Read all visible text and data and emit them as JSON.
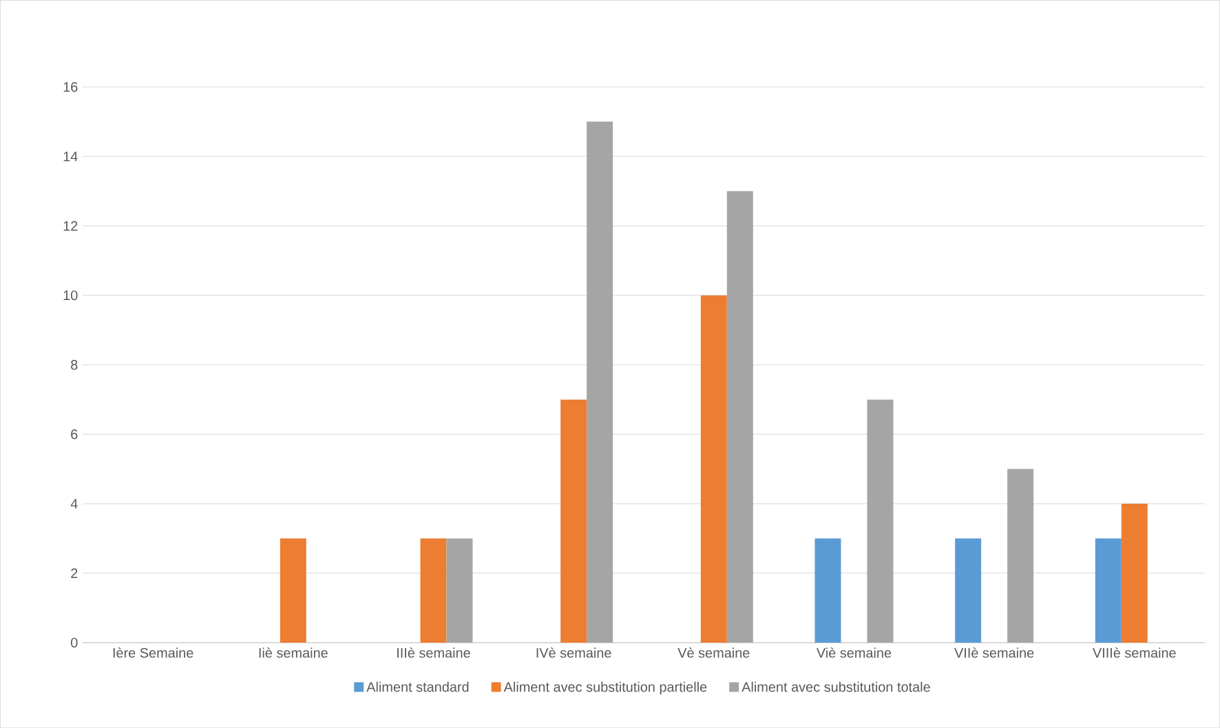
{
  "chart_data": {
    "type": "bar",
    "categories": [
      "Ière Semaine",
      "Iiè semaine",
      "IIIè semaine",
      "IVè semaine",
      "Vè semaine",
      "Viè semaine",
      "VIIè semaine",
      "VIIIè semaine"
    ],
    "series": [
      {
        "name": "Aliment standard",
        "color": "#5b9bd5",
        "values": [
          0,
          0,
          0,
          0,
          0,
          3,
          3,
          3
        ]
      },
      {
        "name": "Aliment avec substitution partielle",
        "color": "#ed7d31",
        "values": [
          0,
          3,
          3,
          7,
          10,
          0,
          0,
          4
        ]
      },
      {
        "name": "Aliment avec substitution totale",
        "color": "#a5a5a5",
        "values": [
          0,
          0,
          3,
          15,
          13,
          7,
          5,
          0
        ]
      }
    ],
    "ylim": [
      0,
      16
    ],
    "yticks": [
      0,
      2,
      4,
      6,
      8,
      10,
      12,
      14,
      16
    ],
    "grid": "y",
    "legend": "bottom"
  }
}
